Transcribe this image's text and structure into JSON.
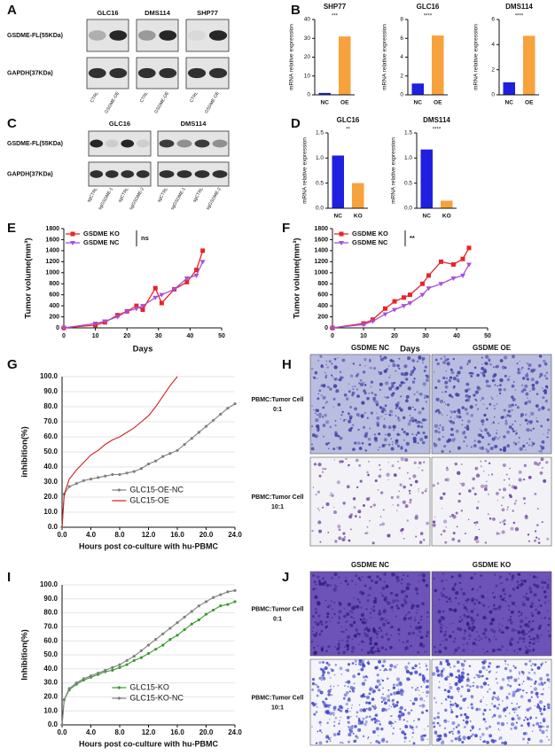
{
  "panel_letters": [
    "A",
    "B",
    "C",
    "D",
    "E",
    "F",
    "G",
    "H",
    "I",
    "J"
  ],
  "blots": [
    {
      "groups": [
        {
          "name": "GLC16",
          "lanes": [
            "CTRL",
            "GSDME-OE"
          ]
        },
        {
          "name": "DMS114",
          "lanes": [
            "CTRL",
            "GSDME-OE"
          ]
        },
        {
          "name": "SHP77",
          "lanes": [
            "CTRL",
            "GSDME-OE"
          ]
        }
      ],
      "rows": [
        "GSDME-FL(55KDa)",
        "GAPDH(37KDa)"
      ]
    },
    {
      "groups": [
        {
          "name": "GLC16",
          "lanes": [
            "sgCTRL",
            "sgGSDME-1",
            "sgCTRL",
            "sgGSDME-2"
          ]
        },
        {
          "name": "DMS114",
          "lanes": [
            "sgCTRL",
            "sgGSDME-1",
            "sgCTRL",
            "sgGSDME-2"
          ]
        }
      ],
      "rows": [
        "GSDME-FL(55KDa)",
        "GAPDH(37KDa)"
      ]
    }
  ],
  "micrographs": [
    {
      "columns": [
        "GSDME NC",
        "GSDME OE"
      ],
      "rows": [
        [
          "PBMC:Tumor Cell",
          "0:1"
        ],
        [
          "PBMC:Tumor Cell",
          "10:1"
        ]
      ]
    },
    {
      "columns": [
        "GSDME NC",
        "GSDME KO"
      ],
      "rows": [
        [
          "PBMC:Tumor Cell",
          "0:1"
        ],
        [
          "PBMC:Tumor Cell",
          "10:1"
        ]
      ]
    }
  ],
  "chart_data": [
    {
      "type": "bar",
      "title": "SHP77",
      "ylabel": "mRNA relative expression",
      "categories": [
        "NC",
        "OE"
      ],
      "values": [
        1,
        31
      ],
      "colors": [
        "#1f1fe0",
        "#f7a23c"
      ],
      "ylim": [
        0,
        40
      ],
      "yticks": [
        0,
        10,
        20,
        30,
        40
      ],
      "annotation": "***"
    },
    {
      "type": "bar",
      "title": "GLC16",
      "ylabel": "mRNA relative expression",
      "categories": [
        "NC",
        "OE"
      ],
      "values": [
        1.2,
        6.3
      ],
      "colors": [
        "#1f1fe0",
        "#f7a23c"
      ],
      "ylim": [
        0,
        8
      ],
      "yticks": [
        0,
        2,
        4,
        6,
        8
      ],
      "annotation": "****"
    },
    {
      "type": "bar",
      "title": "DMS114",
      "ylabel": "mRNA relative expression",
      "categories": [
        "NC",
        "OE"
      ],
      "values": [
        1.0,
        4.7
      ],
      "colors": [
        "#1f1fe0",
        "#f7a23c"
      ],
      "ylim": [
        0,
        6
      ],
      "yticks": [
        0,
        2,
        4,
        6
      ],
      "annotation": "****"
    },
    {
      "type": "bar",
      "title": "GLC16",
      "ylabel": "mRNA relative expression",
      "categories": [
        "NC",
        "KO"
      ],
      "values": [
        1.05,
        0.5
      ],
      "colors": [
        "#1f1fe0",
        "#f7a23c"
      ],
      "ylim": [
        0,
        1.5
      ],
      "yticks": [
        {
          "value": 0,
          "label": "0.0"
        },
        {
          "value": 0.5,
          "label": "0.5"
        },
        {
          "value": 1,
          "label": "1.0"
        },
        {
          "value": 1.5,
          "label": "1.5"
        }
      ],
      "annotation": "**"
    },
    {
      "type": "bar",
      "title": "DMS114",
      "ylabel": "mRNA relative expression",
      "categories": [
        "NC",
        "KO"
      ],
      "values": [
        1.17,
        0.15
      ],
      "colors": [
        "#1f1fe0",
        "#f7a23c"
      ],
      "ylim": [
        0,
        1.5
      ],
      "yticks": [
        {
          "value": 0,
          "label": "0.0"
        },
        {
          "value": 0.5,
          "label": "0.5"
        },
        {
          "value": 1,
          "label": "1.0"
        },
        {
          "value": 1.5,
          "label": "1.5"
        }
      ],
      "annotation": "****"
    },
    {
      "type": "line",
      "xlabel": "Days",
      "ylabel": "Tumor volume(mm³)",
      "legend": "upper-left",
      "annotation": "ns",
      "grid": false,
      "x": [
        0,
        10,
        13,
        17,
        20,
        23,
        25,
        29,
        31,
        35,
        39,
        42,
        44
      ],
      "series": [
        {
          "name": "GSDME KO",
          "color": "#e8242a",
          "marker": "square",
          "values": [
            0,
            50,
            100,
            230,
            300,
            400,
            330,
            720,
            450,
            700,
            830,
            1050,
            1400
          ]
        },
        {
          "name": "GSDME NC",
          "color": "#a64fd8",
          "marker": "triangle",
          "values": [
            0,
            80,
            120,
            200,
            300,
            350,
            400,
            550,
            600,
            700,
            900,
            950,
            1200
          ]
        }
      ],
      "xlim": [
        0,
        50
      ],
      "xticks": [
        0,
        10,
        20,
        30,
        40,
        50
      ],
      "ylim": [
        0,
        1800
      ],
      "yticks": [
        0,
        200,
        400,
        600,
        800,
        1000,
        1200,
        1400,
        1600,
        1800
      ]
    },
    {
      "type": "line",
      "xlabel": "Days",
      "ylabel": "Tumor volume(mm³)",
      "legend": "upper-left",
      "annotation": "**",
      "grid": false,
      "x": [
        0,
        10,
        13,
        17,
        20,
        23,
        25,
        29,
        31,
        35,
        39,
        42,
        44
      ],
      "series": [
        {
          "name": "GSDME KO",
          "color": "#e8242a",
          "marker": "square",
          "values": [
            0,
            80,
            150,
            350,
            480,
            550,
            600,
            800,
            950,
            1200,
            1150,
            1250,
            1450
          ]
        },
        {
          "name": "GSDME NC",
          "color": "#a64fd8",
          "marker": "triangle",
          "values": [
            0,
            60,
            120,
            250,
            330,
            400,
            450,
            600,
            720,
            800,
            900,
            950,
            1150
          ]
        }
      ],
      "xlim": [
        0,
        50
      ],
      "xticks": [
        0,
        10,
        20,
        30,
        40,
        50
      ],
      "ylim": [
        0,
        1800
      ],
      "yticks": [
        0,
        200,
        400,
        600,
        800,
        1000,
        1200,
        1400,
        1600,
        1800
      ]
    },
    {
      "type": "line",
      "xlabel": "Hours post co-culture with hu-PBMC",
      "ylabel": "inhibition(%)",
      "legend": "lower-center",
      "grid": true,
      "x": [
        0,
        0.3,
        1,
        2,
        3,
        4,
        5,
        6,
        7,
        8,
        9,
        10,
        11,
        12,
        13,
        14,
        15,
        16,
        17,
        18,
        19,
        20,
        21,
        22,
        23,
        24
      ],
      "series": [
        {
          "name": "GLC15-OE-NC",
          "color": "#808080",
          "marker": "circle",
          "values": [
            0,
            22,
            27,
            29,
            31,
            32,
            33,
            34,
            35,
            35,
            36,
            37,
            39,
            42,
            44,
            47,
            49,
            51,
            55,
            59,
            63,
            67,
            71,
            75,
            79,
            82
          ]
        },
        {
          "name": "GLC15-OE",
          "color": "#d42020",
          "marker": "none",
          "values": [
            0,
            22,
            32,
            38,
            43,
            48,
            51,
            55,
            58,
            60,
            63,
            66,
            70,
            74,
            80,
            87,
            94,
            100,
            null,
            null,
            null,
            null,
            null,
            null,
            null,
            null
          ]
        }
      ],
      "xlim": [
        0,
        24
      ],
      "xticks": [
        {
          "value": 0,
          "label": "0.0"
        },
        {
          "value": 4,
          "label": "4.0"
        },
        {
          "value": 8,
          "label": "8.0"
        },
        {
          "value": 12,
          "label": "12.0"
        },
        {
          "value": 16,
          "label": "16.0"
        },
        {
          "value": 20,
          "label": "20.0"
        },
        {
          "value": 24,
          "label": "24.0"
        }
      ],
      "ylim": [
        0,
        100
      ],
      "yticks": [
        {
          "value": 0,
          "label": "0.0"
        },
        {
          "value": 10,
          "label": "10.0"
        },
        {
          "value": 20,
          "label": "20.0"
        },
        {
          "value": 30,
          "label": "30.0"
        },
        {
          "value": 40,
          "label": "40.0"
        },
        {
          "value": 50,
          "label": "50.0"
        },
        {
          "value": 60,
          "label": "60.0"
        },
        {
          "value": 70,
          "label": "70.0"
        },
        {
          "value": 80,
          "label": "80.0"
        },
        {
          "value": 90,
          "label": "90.0"
        },
        {
          "value": 100,
          "label": "100.0"
        }
      ]
    },
    {
      "type": "line",
      "xlabel": "Hours post co-culture with hu-PBMC",
      "ylabel": "Inhibition(%)",
      "legend": "lower-center",
      "grid": true,
      "x": [
        0,
        0.3,
        1,
        2,
        3,
        4,
        5,
        6,
        7,
        8,
        9,
        10,
        11,
        12,
        13,
        14,
        15,
        16,
        17,
        18,
        19,
        20,
        21,
        22,
        23,
        24
      ],
      "series": [
        {
          "name": "GLC15-KO",
          "color": "#3a9a30",
          "marker": "circle",
          "values": [
            0,
            18,
            25,
            29,
            32,
            34,
            36,
            38,
            39,
            41,
            43,
            46,
            48,
            51,
            54,
            57,
            61,
            64,
            68,
            72,
            75,
            79,
            82,
            85,
            86,
            88
          ]
        },
        {
          "name": "GLC15-KO-NC",
          "color": "#808080",
          "marker": "circle",
          "values": [
            0,
            18,
            26,
            30,
            33,
            35,
            37,
            39,
            41,
            43,
            46,
            49,
            53,
            57,
            61,
            65,
            69,
            73,
            77,
            81,
            85,
            88,
            91,
            93,
            95,
            96
          ]
        }
      ],
      "xlim": [
        0,
        24
      ],
      "xticks": [
        {
          "value": 0,
          "label": "0.0"
        },
        {
          "value": 4,
          "label": "4.0"
        },
        {
          "value": 8,
          "label": "8.0"
        },
        {
          "value": 12,
          "label": "12.0"
        },
        {
          "value": 16,
          "label": "16.0"
        },
        {
          "value": 20,
          "label": "20.0"
        },
        {
          "value": 24,
          "label": "24.0"
        }
      ],
      "ylim": [
        0,
        100
      ],
      "yticks": [
        {
          "value": 0,
          "label": "0.0"
        },
        {
          "value": 10,
          "label": "10.0"
        },
        {
          "value": 20,
          "label": "20.0"
        },
        {
          "value": 30,
          "label": "30.0"
        },
        {
          "value": 40,
          "label": "40.0"
        },
        {
          "value": 50,
          "label": "50.0"
        },
        {
          "value": 60,
          "label": "60.0"
        },
        {
          "value": 70,
          "label": "70.0"
        },
        {
          "value": 80,
          "label": "80.0"
        },
        {
          "value": 90,
          "label": "90.0"
        },
        {
          "value": 100,
          "label": "100.0"
        }
      ]
    }
  ]
}
